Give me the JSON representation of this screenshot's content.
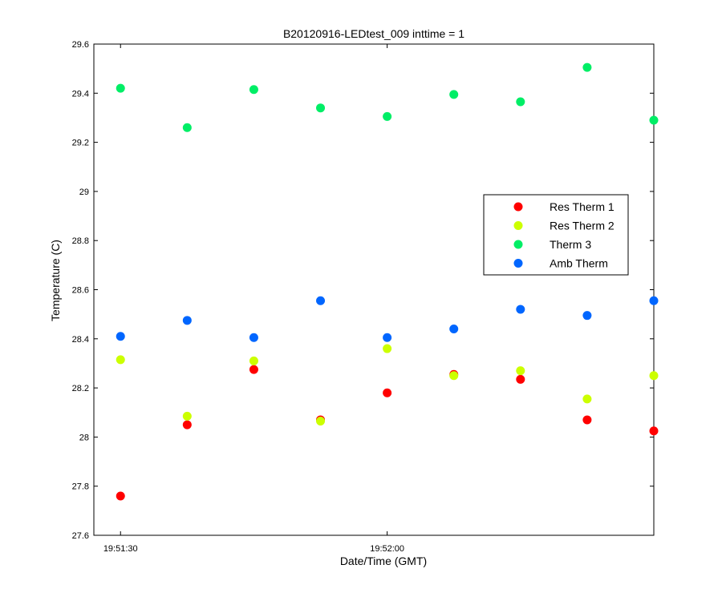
{
  "chart_data": {
    "type": "scatter",
    "title": "B20120916-LEDtest_009 inttime = 1",
    "xlabel": "Date/Time (GMT)",
    "ylabel": "Temperature (C)",
    "ylim": [
      27.6,
      29.6
    ],
    "y_ticks": [
      27.6,
      27.8,
      28,
      28.2,
      28.4,
      28.6,
      28.8,
      29,
      29.2,
      29.4,
      29.6
    ],
    "y_tick_labels": [
      "27.6",
      "27.8",
      "28",
      "28.2",
      "28.4",
      "28.6",
      "28.8",
      "29",
      "29.2",
      "29.4",
      "29.6"
    ],
    "xlim": [
      "19:51:27",
      "19:52:30"
    ],
    "x_ticks": [
      "19:51:30",
      "19:52:00"
    ],
    "x": [
      "19:51:30",
      "19:51:37.5",
      "19:51:45",
      "19:51:52.5",
      "19:52:00",
      "19:52:07.5",
      "19:52:15",
      "19:52:22.5",
      "19:52:30"
    ],
    "grid": false,
    "legend_position": "right",
    "series": [
      {
        "name": "Res Therm 1",
        "color": "#ff0000",
        "values": [
          27.76,
          28.05,
          28.275,
          28.07,
          28.18,
          28.255,
          28.235,
          28.07,
          28.025
        ]
      },
      {
        "name": "Res Therm 2",
        "color": "#ccff00",
        "values": [
          28.315,
          28.085,
          28.31,
          28.065,
          28.36,
          28.25,
          28.27,
          28.155,
          28.25
        ]
      },
      {
        "name": "Therm 3",
        "color": "#00ee66",
        "values": [
          29.42,
          29.26,
          29.415,
          29.34,
          29.305,
          29.395,
          29.365,
          29.505,
          29.29
        ]
      },
      {
        "name": "Amb Therm",
        "color": "#0066ff",
        "values": [
          28.41,
          28.475,
          28.405,
          28.555,
          28.405,
          28.44,
          28.52,
          28.495,
          28.555
        ]
      }
    ]
  }
}
